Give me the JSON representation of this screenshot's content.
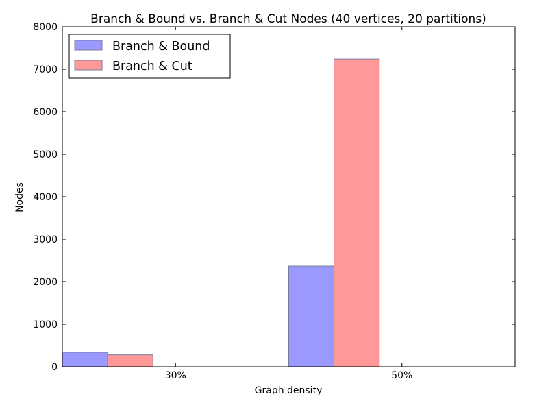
{
  "chart_data": {
    "type": "bar",
    "title": "Branch & Bound vs. Branch & Cut Nodes (40 vertices, 20 partitions)",
    "xlabel": "Graph density",
    "ylabel": "Nodes",
    "categories": [
      "30%",
      "50%"
    ],
    "series": [
      {
        "name": "Branch & Bound",
        "values": [
          340,
          2370
        ],
        "color": "#9999ff"
      },
      {
        "name": "Branch & Cut",
        "values": [
          280,
          7240
        ],
        "color": "#ff9999"
      }
    ],
    "ylim": [
      0,
      8000
    ],
    "yticks": [
      0,
      1000,
      2000,
      3000,
      4000,
      5000,
      6000,
      7000,
      8000
    ],
    "grid": false,
    "legend_position": "top-left"
  }
}
